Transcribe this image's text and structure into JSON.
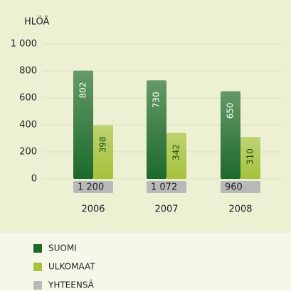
{
  "chart_data": {
    "type": "bar",
    "y_label": "HLÖÄ",
    "categories": [
      "2006",
      "2007",
      "2008"
    ],
    "series": [
      {
        "name": "SUOMI",
        "color": "#1c6a2c",
        "values": [
          802,
          730,
          650
        ]
      },
      {
        "name": "ULKOMAAT",
        "color": "#a5c23b",
        "values": [
          398,
          342,
          310
        ]
      },
      {
        "name": "YHTEENSÄ",
        "color": "#b9b9b9",
        "values": [
          1200,
          1072,
          960
        ],
        "value_labels": [
          "1 200",
          "1 072",
          "960"
        ]
      }
    ],
    "ylim": [
      0,
      1000
    ],
    "yticks": [
      0,
      200,
      400,
      600,
      800,
      {
        "value": 1000,
        "label": "1 000"
      }
    ],
    "grid": true
  }
}
